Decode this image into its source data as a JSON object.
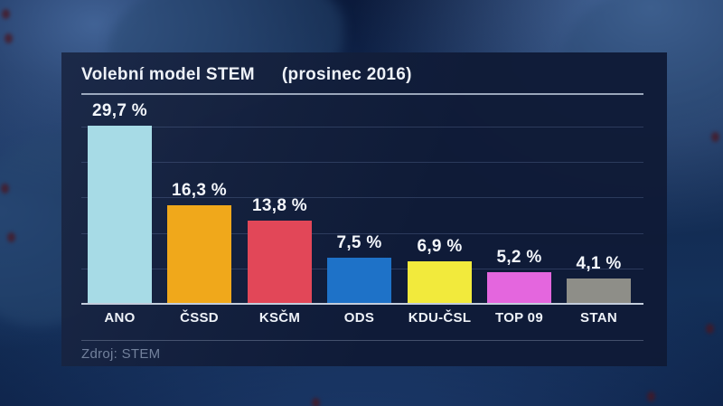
{
  "chart_data": {
    "type": "bar",
    "title": "Volební model STEM",
    "subtitle": "(prosinec 2016)",
    "source": "Zdroj: STEM",
    "categories": [
      "ANO",
      "ČSSD",
      "KSČM",
      "ODS",
      "KDU-ČSL",
      "TOP 09",
      "STAN"
    ],
    "values": [
      29.7,
      16.3,
      13.8,
      7.5,
      6.9,
      5.2,
      4.1
    ],
    "value_labels": [
      "29,7 %",
      "16,3 %",
      "13,8 %",
      "7,5 %",
      "6,9 %",
      "5,2 %",
      "4,1 %"
    ],
    "bar_colors": [
      "#a7dbe6",
      "#f0a81b",
      "#e24758",
      "#1e72c8",
      "#f2ea3c",
      "#e466de",
      "#8e8e88"
    ],
    "ylim": [
      0,
      30
    ],
    "grid": true,
    "legend": false,
    "xlabel": "",
    "ylabel": ""
  },
  "colors": {
    "panel_background": "#101b37",
    "text_primary": "#f3f6fb",
    "text_muted": "#72819c",
    "baseline": "#c3cddc",
    "gridline": "#60769f"
  }
}
